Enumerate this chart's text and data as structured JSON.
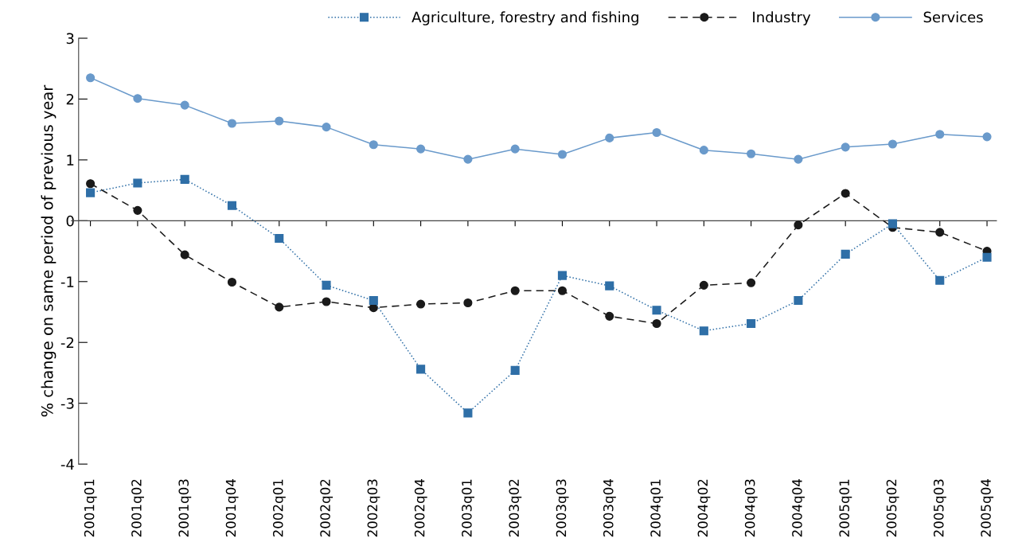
{
  "chart_data": {
    "type": "line",
    "ylabel": "% change on same period of previous year",
    "categories": [
      "2001q01",
      "2001q02",
      "2001q03",
      "2001q04",
      "2002q01",
      "2002q02",
      "2002q03",
      "2002q04",
      "2003q01",
      "2003q02",
      "2003q03",
      "2003q04",
      "2004q01",
      "2004q02",
      "2004q03",
      "2004q04",
      "2005q01",
      "2005q02",
      "2005q03",
      "2005q04"
    ],
    "series": [
      {
        "name": "Agriculture, forestry and fishing",
        "color": "#2f6fa7",
        "marker": "square",
        "line_style": "dotted",
        "values": [
          0.46,
          0.62,
          0.68,
          0.25,
          -0.29,
          -1.06,
          -1.31,
          -2.44,
          -3.16,
          -2.46,
          -0.9,
          -1.07,
          -1.47,
          -1.81,
          -1.69,
          -1.31,
          -0.55,
          -0.05,
          -0.98,
          -0.6
        ]
      },
      {
        "name": "Industry",
        "color": "#1a1a1a",
        "marker": "circle",
        "line_style": "dashed",
        "values": [
          0.61,
          0.17,
          -0.56,
          -1.01,
          -1.42,
          -1.33,
          -1.43,
          -1.37,
          -1.35,
          -1.15,
          -1.15,
          -1.57,
          -1.69,
          -1.06,
          -1.02,
          -0.07,
          0.45,
          -0.11,
          -0.19,
          -0.5
        ]
      },
      {
        "name": "Services",
        "color": "#6a9acb",
        "marker": "circle",
        "line_style": "solid",
        "values": [
          2.35,
          2.01,
          1.9,
          1.6,
          1.64,
          1.54,
          1.25,
          1.18,
          1.01,
          1.18,
          1.09,
          1.36,
          1.45,
          1.16,
          1.1,
          1.01,
          1.21,
          1.26,
          1.42,
          1.38
        ]
      }
    ],
    "ylim": [
      -4,
      3
    ],
    "yticks": [
      -4,
      -3,
      -2,
      -1,
      0,
      1,
      2,
      3
    ],
    "legend": "top right"
  }
}
